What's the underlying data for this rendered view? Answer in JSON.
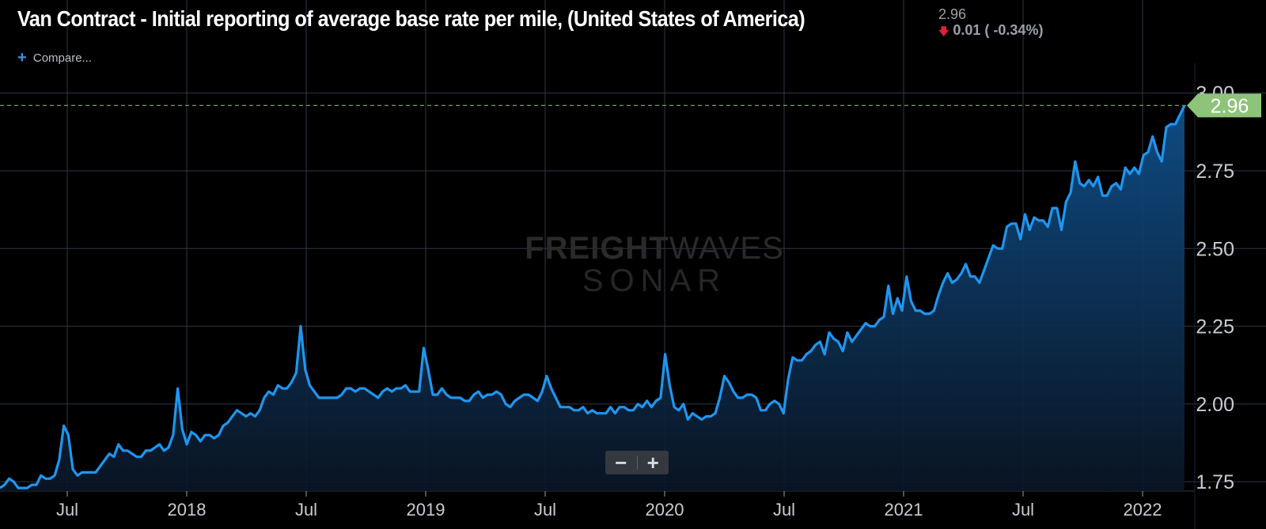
{
  "header": {
    "title": "Van Contract - Initial reporting of average base rate per mile, (United States of America)",
    "last_value": "2.96",
    "change_arrow": "🡇",
    "change_text": "0.01 ( -0.34%)",
    "compare_plus": "+",
    "compare_label": "Compare..."
  },
  "watermark": {
    "line1_bold": "FREIGHT",
    "line1_thin": "WAVES",
    "line2": "SONAR"
  },
  "zoom": {
    "minus": "−",
    "plus": "+"
  },
  "colors": {
    "line": "#1e96f0",
    "area_top": "#0f4f8a",
    "grid": "#2e3744",
    "tag": "#8ec47a",
    "ref_line": "#8ec47a",
    "axis_text": "#c8ccd2",
    "down_arrow": "#e0213b"
  },
  "chart_data": {
    "type": "area",
    "x_ticks": [
      "Jul",
      "2018",
      "Jul",
      "2019",
      "Jul",
      "2020",
      "Jul",
      "2021",
      "Jul",
      "2022"
    ],
    "y_ticks": [
      "1.75",
      "2.00",
      "2.25",
      "2.50",
      "2.75",
      "3.00"
    ],
    "ylim": [
      1.72,
      3.05
    ],
    "last_value_label": "2.96",
    "grid": true,
    "series": [
      {
        "values": [
          1.73,
          1.74,
          1.76,
          1.75,
          1.73,
          1.73,
          1.73,
          1.74,
          1.74,
          1.77,
          1.76,
          1.76,
          1.77,
          1.82,
          1.93,
          1.9,
          1.79,
          1.77,
          1.78,
          1.78,
          1.78,
          1.78,
          1.8,
          1.82,
          1.84,
          1.83,
          1.87,
          1.85,
          1.85,
          1.84,
          1.83,
          1.83,
          1.85,
          1.85,
          1.86,
          1.87,
          1.85,
          1.86,
          1.9,
          2.05,
          1.92,
          1.87,
          1.91,
          1.9,
          1.88,
          1.9,
          1.9,
          1.89,
          1.9,
          1.93,
          1.94,
          1.96,
          1.98,
          1.97,
          1.96,
          1.97,
          1.96,
          1.98,
          2.02,
          2.04,
          2.03,
          2.06,
          2.05,
          2.05,
          2.07,
          2.1,
          2.25,
          2.11,
          2.06,
          2.04,
          2.02,
          2.02,
          2.02,
          2.02,
          2.02,
          2.03,
          2.05,
          2.05,
          2.04,
          2.05,
          2.05,
          2.04,
          2.03,
          2.02,
          2.04,
          2.05,
          2.04,
          2.05,
          2.05,
          2.06,
          2.04,
          2.04,
          2.04,
          2.18,
          2.11,
          2.03,
          2.03,
          2.05,
          2.03,
          2.02,
          2.02,
          2.02,
          2.01,
          2.01,
          2.03,
          2.04,
          2.02,
          2.03,
          2.03,
          2.04,
          2.03,
          2.0,
          1.99,
          2.01,
          2.02,
          2.03,
          2.03,
          2.02,
          2.01,
          2.04,
          2.09,
          2.05,
          2.02,
          1.99,
          1.99,
          1.99,
          1.98,
          1.98,
          1.99,
          1.97,
          1.98,
          1.97,
          1.97,
          1.97,
          1.99,
          1.97,
          1.99,
          1.99,
          1.98,
          1.98,
          2.0,
          1.99,
          2.01,
          1.99,
          2.01,
          2.02,
          2.16,
          2.06,
          1.99,
          1.98,
          2.0,
          1.95,
          1.97,
          1.96,
          1.95,
          1.96,
          1.96,
          1.97,
          2.02,
          2.09,
          2.07,
          2.04,
          2.02,
          2.02,
          2.03,
          2.03,
          2.02,
          1.98,
          1.98,
          2.0,
          2.01,
          2.0,
          1.97,
          2.08,
          2.15,
          2.14,
          2.14,
          2.16,
          2.17,
          2.19,
          2.2,
          2.16,
          2.23,
          2.21,
          2.2,
          2.17,
          2.23,
          2.2,
          2.22,
          2.24,
          2.26,
          2.25,
          2.25,
          2.27,
          2.28,
          2.38,
          2.29,
          2.34,
          2.3,
          2.41,
          2.33,
          2.3,
          2.3,
          2.29,
          2.29,
          2.3,
          2.35,
          2.39,
          2.42,
          2.39,
          2.4,
          2.42,
          2.45,
          2.41,
          2.41,
          2.39,
          2.43,
          2.47,
          2.51,
          2.5,
          2.5,
          2.57,
          2.58,
          2.58,
          2.53,
          2.61,
          2.56,
          2.6,
          2.59,
          2.59,
          2.57,
          2.63,
          2.63,
          2.56,
          2.65,
          2.68,
          2.78,
          2.71,
          2.7,
          2.72,
          2.7,
          2.73,
          2.67,
          2.67,
          2.7,
          2.71,
          2.69,
          2.76,
          2.74,
          2.76,
          2.74,
          2.8,
          2.81,
          2.86,
          2.81,
          2.78,
          2.89,
          2.9,
          2.9,
          2.93,
          2.96
        ]
      }
    ]
  }
}
